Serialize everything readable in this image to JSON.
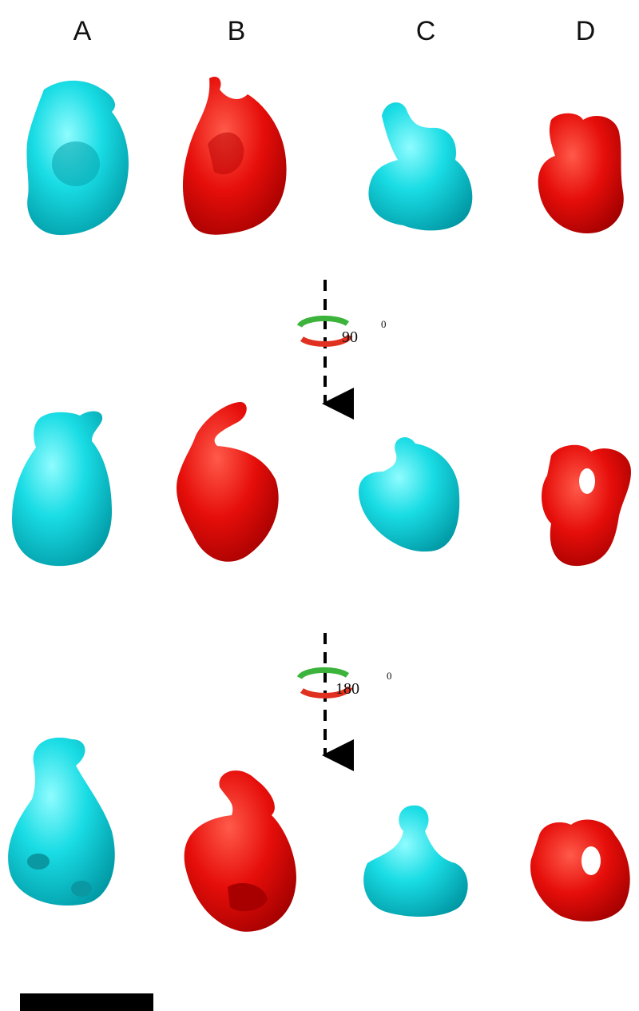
{
  "columns": [
    "A",
    "B",
    "C",
    "D"
  ],
  "rotations": [
    {
      "angle": "90",
      "superscript": "0"
    },
    {
      "angle": "180",
      "superscript": "0"
    }
  ]
}
